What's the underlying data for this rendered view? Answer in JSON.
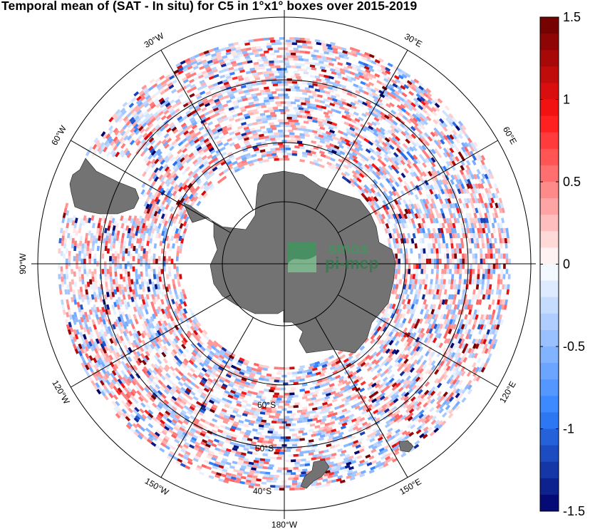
{
  "title": "Temporal mean of (SAT - In situ) for C5 in 1°x1° boxes over 2015-2019",
  "logo": {
    "line1": "smos",
    "line2": "pi-mep"
  },
  "chart_data": {
    "type": "heatmap",
    "projection": "south polar stereographic",
    "title": "Temporal mean of (SAT - In situ) for C5 in 1°x1° boxes over 2015-2019",
    "longitude_labels": [
      "30°W",
      "30°E",
      "60°W",
      "60°E",
      "90°W",
      "120°W",
      "120°E",
      "150°W",
      "150°E",
      "180°W"
    ],
    "latitude_labels": [
      "60°S",
      "50°S",
      "40°S"
    ],
    "colorbar": {
      "range": [
        -1.5,
        1.5
      ],
      "ticks": [
        1.5,
        1,
        0.5,
        0,
        -0.5,
        -1,
        -1.5
      ],
      "tick_labels": [
        "1.5",
        "1",
        "0.5",
        "0",
        "-0.5",
        "-1",
        "-1.5"
      ],
      "colormap": "blue-white-red diverging",
      "levels": 30
    },
    "data_coverage": "ring of 1x1 degree boxes between approximately 65°S and 40°S around Antarctica",
    "colors": {
      "land": "#737373",
      "negative_max": "#00006b",
      "zero": "#ffffff",
      "positive_max": "#6b0000"
    }
  }
}
